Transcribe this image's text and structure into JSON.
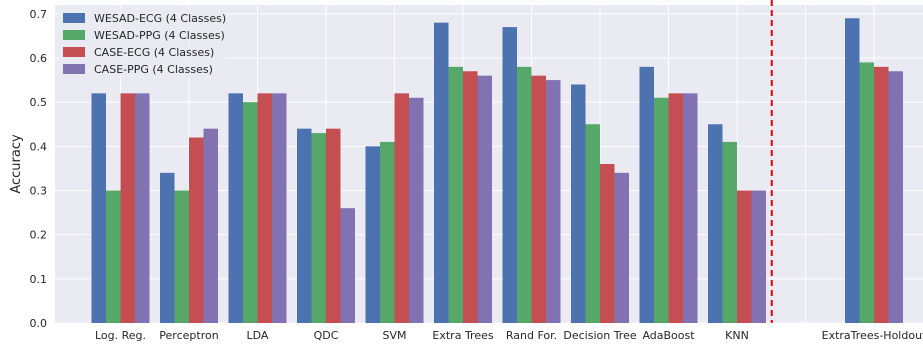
{
  "chart_data": {
    "type": "bar",
    "title": "",
    "xlabel": "",
    "ylabel": "Accuracy",
    "ylim": [
      0,
      0.72
    ],
    "yticks": [
      "0.0",
      "0.1",
      "0.2",
      "0.3",
      "0.4",
      "0.5",
      "0.6",
      "0.7"
    ],
    "grid": true,
    "legend_position": "top-left",
    "categories": [
      "Log. Reg.",
      "Perceptron",
      "LDA",
      "QDC",
      "SVM",
      "Extra Trees",
      "Rand For.",
      "Decision Tree",
      "AdaBoost",
      "KNN",
      "",
      "ExtraTrees-Holdout"
    ],
    "series": [
      {
        "name": "WESAD-ECG (4 Classes)",
        "color": "#4c72b0",
        "values": [
          0.52,
          0.34,
          0.52,
          0.44,
          0.4,
          0.68,
          0.67,
          0.54,
          0.58,
          0.45,
          null,
          0.69
        ]
      },
      {
        "name": "WESAD-PPG (4 Classes)",
        "color": "#55a868",
        "values": [
          0.3,
          0.3,
          0.5,
          0.43,
          0.41,
          0.58,
          0.58,
          0.45,
          0.51,
          0.41,
          null,
          0.59
        ]
      },
      {
        "name": "CASE-ECG (4 Classes)",
        "color": "#c44e52",
        "values": [
          0.52,
          0.42,
          0.52,
          0.44,
          0.52,
          0.57,
          0.56,
          0.36,
          0.52,
          0.3,
          null,
          0.58
        ]
      },
      {
        "name": "CASE-PPG (4 Classes)",
        "color": "#8172b2",
        "values": [
          0.52,
          0.44,
          0.52,
          0.26,
          0.51,
          0.56,
          0.55,
          0.34,
          0.52,
          0.3,
          null,
          0.57
        ]
      }
    ],
    "separator": {
      "after_category_index": 10,
      "style": "dashed",
      "color": "#e8000b"
    }
  },
  "colors": {
    "plot_background": "#eaeaf2",
    "grid": "#ffffff",
    "text": "#262626"
  }
}
